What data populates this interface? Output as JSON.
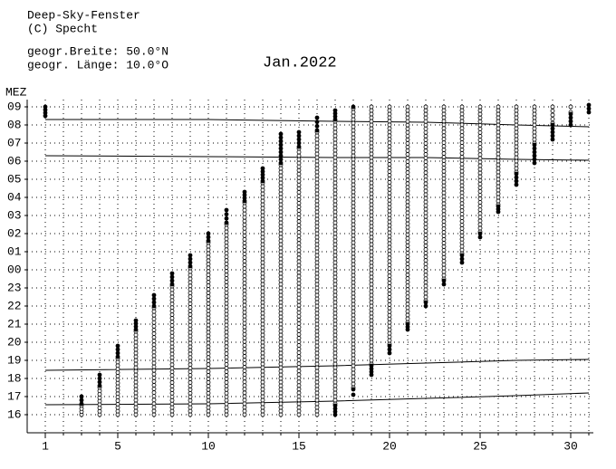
{
  "header": {
    "title": "Deep-Sky-Fenster",
    "copyright": "(C) Specht",
    "latitude": "geogr.Breite: 50.0°N",
    "longitude": "geogr. Länge: 10.0°O"
  },
  "chart_data": {
    "type": "range-dots",
    "title": "Jan.2022",
    "y_label": "MEZ",
    "x": [
      1,
      2,
      3,
      4,
      5,
      6,
      7,
      8,
      9,
      10,
      11,
      12,
      13,
      14,
      15,
      16,
      17,
      18,
      19,
      20,
      21,
      22,
      23,
      24,
      25,
      26,
      27,
      28,
      29,
      30,
      31
    ],
    "xlim": [
      0,
      31.25
    ],
    "xticks": [
      1,
      5,
      10,
      15,
      20,
      25,
      30
    ],
    "ylim": [
      15,
      33.4
    ],
    "yticks": [
      16,
      17,
      18,
      19,
      20,
      21,
      22,
      23,
      {
        "value": 24,
        "label": "00"
      },
      {
        "value": 25,
        "label": "01"
      },
      {
        "value": 26,
        "label": "02"
      },
      {
        "value": 27,
        "label": "03"
      },
      {
        "value": 28,
        "label": "04"
      },
      {
        "value": 29,
        "label": "05"
      },
      {
        "value": 30,
        "label": "06"
      },
      {
        "value": 31,
        "label": "07"
      },
      {
        "value": 32,
        "label": "08"
      },
      {
        "value": 33,
        "label": "09"
      }
    ],
    "grid": true,
    "series": [
      {
        "marker": "open",
        "color": "#000000",
        "low": [
          null,
          null,
          16.0,
          16.0,
          16.0,
          16.0,
          16.0,
          16.0,
          16.0,
          16.0,
          16.0,
          16.0,
          16.0,
          16.0,
          16.0,
          16.0,
          16.6,
          17.5,
          18.8,
          19.9,
          21.1,
          22.3,
          23.5,
          24.9,
          26.1,
          27.6,
          29.4,
          31.0,
          32.1,
          32.7,
          null
        ],
        "high": [
          null,
          null,
          16.5,
          17.5,
          19.1,
          20.6,
          21.9,
          23.1,
          24.1,
          25.5,
          26.5,
          27.7,
          28.8,
          29.8,
          30.7,
          31.6,
          32.2,
          32.9,
          33.0,
          33.0,
          33.0,
          33.0,
          33.0,
          33.0,
          33.0,
          33.0,
          33.0,
          33.0,
          33.0,
          33.0,
          null
        ]
      },
      {
        "marker": "filled",
        "color": "#000000",
        "low": [
          32.5,
          null,
          16.6,
          17.6,
          19.2,
          20.7,
          22.0,
          23.2,
          24.2,
          25.6,
          26.6,
          27.8,
          28.9,
          29.9,
          30.8,
          31.7,
          32.3,
          33.0,
          null,
          null,
          null,
          null,
          null,
          null,
          null,
          null,
          null,
          null,
          null,
          null,
          32.7
        ],
        "high": [
          33.0,
          null,
          17.0,
          18.2,
          19.8,
          21.2,
          22.6,
          23.8,
          24.8,
          26.0,
          27.3,
          28.3,
          29.6,
          31.5,
          31.6,
          32.4,
          32.8,
          33.0,
          null,
          null,
          null,
          null,
          null,
          null,
          null,
          null,
          null,
          null,
          null,
          null,
          33.1
        ]
      },
      {
        "marker": "filled",
        "color": "#000000",
        "low": [
          null,
          null,
          null,
          null,
          null,
          null,
          null,
          null,
          null,
          null,
          null,
          null,
          null,
          null,
          null,
          null,
          16.0,
          17.1,
          18.2,
          19.4,
          20.7,
          22.0,
          23.2,
          24.4,
          25.8,
          27.2,
          28.7,
          29.9,
          31.2,
          32.0,
          null
        ],
        "high": [
          null,
          null,
          null,
          null,
          null,
          null,
          null,
          null,
          null,
          null,
          null,
          null,
          null,
          null,
          null,
          null,
          16.5,
          17.4,
          18.7,
          19.8,
          21.0,
          22.2,
          23.4,
          24.8,
          26.0,
          27.5,
          29.3,
          30.9,
          32.0,
          32.6,
          null
        ]
      }
    ],
    "line_x": [
      1,
      10,
      17,
      22,
      27,
      31
    ],
    "lines": [
      {
        "color": "#000000",
        "values": [
          16.55,
          16.6,
          16.75,
          16.9,
          17.05,
          17.2
        ]
      },
      {
        "color": "#000000",
        "values": [
          18.45,
          18.55,
          18.7,
          18.85,
          19.0,
          19.05
        ]
      },
      {
        "color": "#000000",
        "values": [
          30.3,
          30.25,
          30.2,
          30.2,
          30.1,
          30.05
        ]
      },
      {
        "color": "#000000",
        "values": [
          32.3,
          32.3,
          32.2,
          32.15,
          32.0,
          31.9
        ]
      }
    ]
  }
}
